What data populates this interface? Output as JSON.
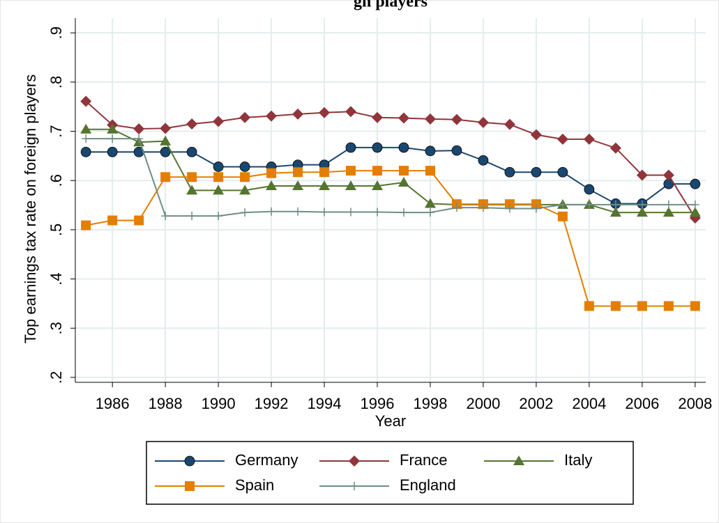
{
  "chart_data": {
    "type": "line",
    "title": "gn players",
    "x_label": "Year",
    "y_label": "Top earnings tax rate on foreign players",
    "x": [
      1985,
      1986,
      1987,
      1988,
      1989,
      1990,
      1991,
      1992,
      1993,
      1994,
      1995,
      1996,
      1997,
      1998,
      1999,
      2000,
      2001,
      2002,
      2003,
      2004,
      2005,
      2006,
      2007,
      2008
    ],
    "xlim": [
      1984.6,
      2008.4
    ],
    "xticks": [
      1986,
      1988,
      1990,
      1992,
      1994,
      1996,
      1998,
      2000,
      2002,
      2004,
      2006,
      2008
    ],
    "ylim": [
      0.19,
      0.93
    ],
    "yticks": [
      {
        "value": 0.2,
        "label": ".2"
      },
      {
        "value": 0.3,
        "label": ".3"
      },
      {
        "value": 0.4,
        "label": ".4"
      },
      {
        "value": 0.5,
        "label": ".5"
      },
      {
        "value": 0.6,
        "label": ".6"
      },
      {
        "value": 0.7,
        "label": ".7"
      },
      {
        "value": 0.8,
        "label": ".8"
      },
      {
        "value": 0.9,
        "label": ".9"
      }
    ],
    "grid": true,
    "legend": "bottom",
    "series": [
      {
        "name": "Germany",
        "color": "#1a476f",
        "marker": "circle",
        "values": [
          0.658,
          0.658,
          0.658,
          0.658,
          0.658,
          0.628,
          0.628,
          0.628,
          0.632,
          0.632,
          0.667,
          0.667,
          0.667,
          0.66,
          0.661,
          0.641,
          0.617,
          0.617,
          0.617,
          0.582,
          0.553,
          0.553,
          0.593,
          0.593
        ]
      },
      {
        "name": "France",
        "color": "#90353b",
        "marker": "diamond",
        "values": [
          0.761,
          0.713,
          0.705,
          0.706,
          0.715,
          0.72,
          0.728,
          0.731,
          0.735,
          0.738,
          0.74,
          0.728,
          0.727,
          0.725,
          0.724,
          0.718,
          0.714,
          0.693,
          0.684,
          0.684,
          0.666,
          0.611,
          0.611,
          0.524
        ]
      },
      {
        "name": "Italy",
        "color": "#55752f",
        "marker": "triangle",
        "values": [
          0.704,
          0.704,
          0.678,
          0.68,
          0.58,
          0.58,
          0.58,
          0.589,
          0.589,
          0.589,
          0.589,
          0.589,
          0.596,
          0.553,
          0.551,
          0.551,
          0.551,
          0.551,
          0.551,
          0.551,
          0.535,
          0.535,
          0.535,
          0.535
        ]
      },
      {
        "name": "Spain",
        "color": "#e37e00",
        "marker": "square",
        "values": [
          0.509,
          0.519,
          0.519,
          0.607,
          0.607,
          0.607,
          0.607,
          0.615,
          0.617,
          0.617,
          0.62,
          0.62,
          0.62,
          0.62,
          0.552,
          0.552,
          0.552,
          0.552,
          0.527,
          0.345,
          0.345,
          0.345,
          0.345,
          0.345
        ]
      },
      {
        "name": "England",
        "color": "#6e8e84",
        "marker": "plus",
        "values": [
          0.685,
          0.685,
          0.685,
          0.528,
          0.528,
          0.528,
          0.535,
          0.537,
          0.537,
          0.536,
          0.536,
          0.536,
          0.535,
          0.535,
          0.545,
          0.545,
          0.543,
          0.543,
          0.551,
          0.551,
          0.551,
          0.551,
          0.551,
          0.551
        ]
      }
    ]
  }
}
